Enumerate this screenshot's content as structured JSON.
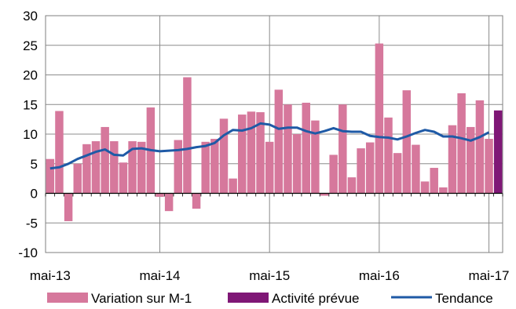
{
  "chart_data": {
    "type": "bar",
    "title": "",
    "xlabel": "",
    "ylabel": "",
    "ylim": [
      -10,
      30
    ],
    "yticks": [
      -10,
      -5,
      0,
      5,
      10,
      15,
      20,
      25,
      30
    ],
    "x_tick_labels": [
      "mai-13",
      "mai-14",
      "mai-15",
      "mai-16",
      "mai-17"
    ],
    "x_tick_month_index": [
      0,
      12,
      24,
      36,
      48
    ],
    "month_count": 49,
    "grid": true,
    "legend_position": "bottom",
    "series": [
      {
        "name": "Variation sur M-1",
        "type": "bar",
        "color": "#d6789c",
        "values": [
          5.8,
          13.9,
          -4.7,
          5.0,
          8.3,
          8.8,
          11.2,
          8.8,
          5.2,
          8.8,
          8.7,
          14.5,
          -0.6,
          -3.0,
          9.0,
          19.6,
          -2.6,
          8.7,
          9.2,
          12.6,
          2.5,
          13.3,
          13.8,
          13.7,
          8.7,
          17.5,
          15.0,
          10.0,
          15.3,
          12.3,
          -0.4,
          6.5,
          15.0,
          2.7,
          7.6,
          8.6,
          25.3,
          12.8,
          6.8,
          17.4,
          8.2,
          2.0,
          4.3,
          1.0,
          11.5,
          16.9,
          11.2,
          15.7,
          9.2
        ]
      },
      {
        "name": "Activité prévue",
        "type": "bar",
        "color": "#7f1776",
        "month_index": 49,
        "values": [
          14.0
        ]
      },
      {
        "name": "Tendance",
        "type": "line",
        "color": "#1f5aa6",
        "values": [
          4.2,
          4.4,
          5.0,
          5.8,
          6.4,
          7.0,
          7.4,
          6.5,
          6.4,
          7.5,
          7.6,
          7.3,
          7.1,
          7.2,
          7.3,
          7.5,
          7.8,
          8.0,
          8.5,
          9.8,
          10.7,
          10.6,
          11.0,
          11.8,
          11.6,
          10.9,
          11.1,
          11.1,
          10.5,
          10.1,
          10.5,
          11.0,
          10.5,
          10.4,
          10.4,
          9.7,
          9.5,
          9.4,
          9.1,
          9.6,
          10.2,
          10.7,
          10.4,
          9.6,
          9.6,
          9.3,
          8.9,
          9.5,
          10.3
        ]
      }
    ]
  }
}
